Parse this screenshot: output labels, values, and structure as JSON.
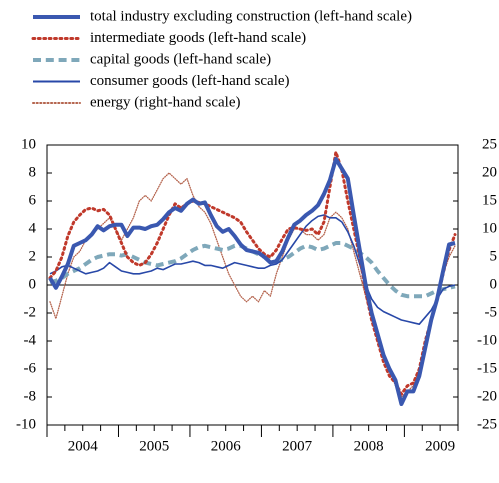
{
  "chart_data": {
    "type": "line",
    "categories": [
      null,
      null,
      null,
      null,
      null,
      null,
      "2004",
      null,
      null,
      null,
      null,
      null,
      null,
      null,
      null,
      null,
      null,
      null,
      "2005",
      null,
      null,
      null,
      null,
      null,
      null,
      null,
      null,
      null,
      null,
      null,
      "2006",
      null,
      null,
      null,
      null,
      null,
      null,
      null,
      null,
      null,
      null,
      null,
      "2007",
      null,
      null,
      null,
      null,
      null,
      null,
      null,
      null,
      null,
      null,
      null,
      "2008",
      null,
      null,
      null,
      null,
      null,
      null,
      null,
      null,
      null,
      null,
      null,
      "2009",
      null,
      null
    ],
    "ylim": [
      -10,
      10
    ],
    "yticks": [
      -10,
      -8,
      -6,
      -4,
      -2,
      0,
      2,
      4,
      6,
      8,
      10
    ],
    "y2lim": [
      -25,
      25
    ],
    "y2ticks": [
      -25,
      -20,
      -15,
      -10,
      -5,
      0,
      5,
      10,
      15,
      20,
      25
    ],
    "series": [
      {
        "name": "total industry excluding construction (left-hand scale)",
        "color": "#3a58b0",
        "linestyle": "solid",
        "linewidth": 4,
        "values": [
          0.5,
          -0.2,
          0.6,
          1.5,
          2.8,
          3.0,
          3.2,
          3.6,
          4.2,
          3.9,
          4.2,
          4.3,
          4.3,
          3.5,
          4.1,
          4.1,
          4.0,
          4.2,
          4.3,
          4.7,
          5.2,
          5.5,
          5.3,
          5.8,
          6.1,
          5.8,
          5.9,
          5.0,
          4.2,
          3.8,
          4.0,
          3.5,
          2.9,
          2.5,
          2.4,
          2.3,
          2.0,
          1.6,
          1.7,
          2.4,
          3.4,
          4.3,
          4.6,
          5.0,
          5.3,
          5.7,
          6.5,
          7.5,
          9.0,
          8.3,
          7.6,
          5.0,
          2.5,
          0.0,
          -2.0,
          -3.5,
          -5.0,
          -6.0,
          -6.8,
          -8.5,
          -7.6,
          -7.6,
          -6.5,
          -4.5,
          -2.5,
          -1.0,
          1.0,
          2.9,
          3.0
        ]
      },
      {
        "name": "intermediate goods (left-hand scale)",
        "color": "#c0392b",
        "linestyle": "dotted",
        "linewidth": 3,
        "values": [
          0.5,
          1.0,
          2.0,
          3.5,
          4.5,
          5.0,
          5.4,
          5.5,
          5.3,
          5.4,
          5.0,
          4.0,
          3.0,
          2.0,
          1.6,
          1.4,
          1.6,
          2.2,
          3.0,
          4.0,
          5.0,
          5.8,
          5.5,
          5.8,
          6.0,
          5.9,
          5.8,
          5.6,
          5.4,
          5.2,
          5.0,
          4.8,
          4.5,
          3.8,
          3.2,
          2.6,
          2.2,
          2.0,
          2.5,
          3.3,
          4.0,
          4.1,
          4.0,
          3.9,
          4.0,
          3.6,
          4.5,
          7.0,
          9.5,
          8.2,
          6.0,
          4.0,
          2.0,
          -0.5,
          -2.5,
          -4.0,
          -5.5,
          -6.5,
          -7.0,
          -7.8,
          -7.2,
          -7.0,
          -6.0,
          -4.0,
          -2.5,
          -1.0,
          0.8,
          2.5,
          3.6
        ]
      },
      {
        "name": "capital goods (left-hand scale)",
        "color": "#7fa8ba",
        "linestyle": "dashed",
        "linewidth": 4,
        "values": [
          0.2,
          0.3,
          0.5,
          0.8,
          1.0,
          1.2,
          1.5,
          1.8,
          2.0,
          2.1,
          2.2,
          2.2,
          2.1,
          2.2,
          2.0,
          1.8,
          1.6,
          1.5,
          1.4,
          1.5,
          1.6,
          1.7,
          1.9,
          2.2,
          2.5,
          2.7,
          2.8,
          2.7,
          2.6,
          2.5,
          2.6,
          2.8,
          2.8,
          2.6,
          2.4,
          2.2,
          2.0,
          1.8,
          1.7,
          1.8,
          2.0,
          2.3,
          2.6,
          2.8,
          2.7,
          2.5,
          2.6,
          2.8,
          3.0,
          3.0,
          2.8,
          2.6,
          2.3,
          2.0,
          1.6,
          1.0,
          0.5,
          0.0,
          -0.4,
          -0.7,
          -0.8,
          -0.8,
          -0.8,
          -0.8,
          -0.6,
          -0.4,
          -0.3,
          -0.2,
          -0.1
        ]
      },
      {
        "name": "consumer goods (left-hand scale)",
        "color": "#2848a8",
        "linestyle": "solid",
        "linewidth": 1.6,
        "values": [
          0.8,
          1.0,
          1.3,
          1.4,
          1.2,
          1.0,
          0.8,
          0.9,
          1.0,
          1.2,
          1.6,
          1.3,
          1.0,
          0.9,
          0.8,
          0.8,
          0.9,
          1.0,
          1.2,
          1.1,
          1.3,
          1.5,
          1.5,
          1.6,
          1.7,
          1.6,
          1.4,
          1.4,
          1.3,
          1.2,
          1.4,
          1.6,
          1.5,
          1.4,
          1.3,
          1.2,
          1.2,
          1.4,
          1.5,
          1.8,
          2.4,
          3.0,
          3.6,
          4.2,
          4.6,
          4.9,
          5.0,
          4.8,
          4.8,
          4.5,
          3.8,
          2.8,
          1.5,
          0.0,
          -1.0,
          -1.6,
          -1.9,
          -2.1,
          -2.3,
          -2.5,
          -2.6,
          -2.7,
          -2.8,
          -2.3,
          -1.8,
          -1.0,
          -0.3,
          -0.1,
          0.0
        ]
      },
      {
        "name": "energy (right-hand scale)",
        "color": "#b5654f",
        "linestyle": "dotted",
        "linewidth": 1.3,
        "axis": "y2",
        "values": [
          -3,
          -6,
          -2,
          2,
          5,
          6,
          8,
          9,
          10,
          11,
          12,
          10,
          8,
          10,
          12,
          15,
          16,
          15,
          17,
          19,
          20,
          19,
          18,
          19,
          16,
          14,
          13,
          11,
          8,
          5,
          2,
          0,
          -2,
          -3,
          -2,
          -3,
          -1,
          -2,
          2,
          5,
          8,
          10,
          10,
          9,
          9,
          8,
          9,
          12,
          13,
          12,
          10,
          6,
          2,
          -2,
          -6,
          -10,
          -13,
          -15,
          -18,
          -20,
          -19,
          -18,
          -15,
          -10,
          -6,
          -2,
          2,
          5,
          7
        ]
      }
    ]
  }
}
